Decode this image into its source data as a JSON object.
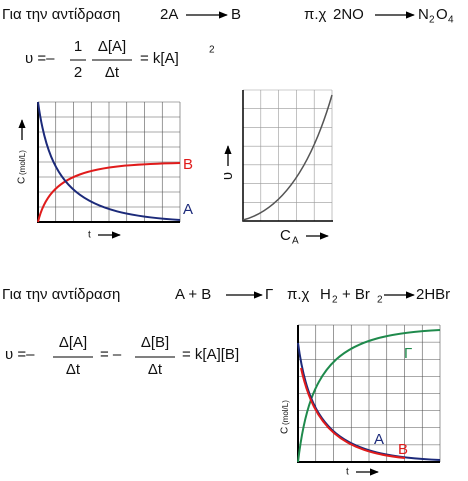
{
  "reaction_1": {
    "label": "Για την αντίδραση",
    "reactant": "2A",
    "product": "B",
    "example_label": "π.χ",
    "example_reactant": "2NO",
    "example_product": {
      "n": "N",
      "n_sub": "2",
      "o": "O",
      "o_sub": "4"
    }
  },
  "rate_law_1": {
    "lhs": "υ =–",
    "coef_num": "1",
    "coef_den": "2",
    "num": "Δ[A]",
    "den": "Δt",
    "rhs": "= k[A]",
    "exponent": "2"
  },
  "chart_1": {
    "y_label": "C",
    "y_unit": "(mol/L)",
    "x_label": "t",
    "curve_labels": [
      "B",
      "A"
    ]
  },
  "chart_2": {
    "y_label": "υ",
    "x_label": "C",
    "x_label_sub": "A"
  },
  "reaction_2": {
    "label": "Για την αντίδραση",
    "reactants": "A + B",
    "product": "Γ",
    "example_label": "π.χ",
    "example_reactants": {
      "h": "H",
      "h_sub": "2",
      "br": "+ Br",
      "br_sub": "2"
    },
    "example_product": "2HBr"
  },
  "rate_law_2": {
    "lhs": "υ =–",
    "num_1": "Δ[A]",
    "den_1": "Δt",
    "mid": "= –",
    "num_2": "Δ[B]",
    "den_2": "Δt",
    "rhs": "= k[A][B]"
  },
  "chart_3": {
    "y_label": "C",
    "y_unit": "(mol/L)",
    "x_label": "t",
    "curve_labels": [
      "Γ",
      "A",
      "B"
    ]
  }
}
